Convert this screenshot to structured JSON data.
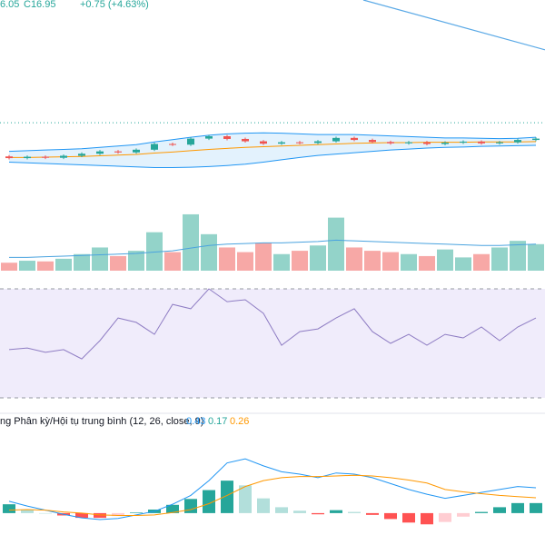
{
  "header": {
    "open_partial": "6.05",
    "close_text": "C16.95",
    "change_text": "+0.75 (+4.63%)"
  },
  "chart_data": [
    {
      "type": "candlestick",
      "ylim": [
        15.2,
        20.6
      ],
      "up_color": "#26a69a",
      "down_color": "#ef5350",
      "open": [
        15.95,
        15.9,
        15.94,
        15.91,
        15.97,
        16.03,
        16.1,
        16.07,
        16.15,
        16.32,
        16.3,
        16.48,
        16.55,
        16.47,
        16.4,
        16.33,
        16.37,
        16.35,
        16.4,
        16.5,
        16.44,
        16.38,
        16.34,
        16.37,
        16.32,
        16.36,
        16.39,
        16.34,
        16.37,
        16.44
      ],
      "close": [
        15.9,
        15.94,
        15.91,
        15.97,
        16.03,
        16.1,
        16.07,
        16.15,
        16.32,
        16.3,
        16.48,
        16.55,
        16.47,
        16.4,
        16.33,
        16.37,
        16.35,
        16.4,
        16.5,
        16.44,
        16.38,
        16.34,
        16.37,
        16.32,
        16.36,
        16.39,
        16.34,
        16.37,
        16.44,
        16.48
      ],
      "high": [
        15.99,
        15.98,
        15.98,
        16.01,
        16.07,
        16.14,
        16.14,
        16.19,
        16.36,
        16.36,
        16.52,
        16.59,
        16.59,
        16.51,
        16.44,
        16.41,
        16.41,
        16.44,
        16.54,
        16.54,
        16.48,
        16.42,
        16.41,
        16.41,
        16.4,
        16.43,
        16.43,
        16.41,
        16.48,
        16.52
      ],
      "low": [
        15.86,
        15.86,
        15.87,
        15.87,
        15.93,
        15.99,
        16.03,
        16.03,
        16.11,
        16.26,
        16.26,
        16.44,
        16.43,
        16.36,
        16.29,
        16.29,
        16.31,
        16.31,
        16.36,
        16.4,
        16.34,
        16.3,
        16.3,
        16.28,
        16.28,
        16.32,
        16.3,
        16.3,
        16.33,
        16.4
      ],
      "bands": [
        {
          "color": "#2196f3",
          "values": [
            16.1,
            16.12,
            16.14,
            16.16,
            16.18,
            16.22,
            16.26,
            16.3,
            16.38,
            16.45,
            16.52,
            16.58,
            16.62,
            16.64,
            16.65,
            16.64,
            16.62,
            16.6,
            16.6,
            16.6,
            16.58,
            16.56,
            16.54,
            16.52,
            16.5,
            16.5,
            16.49,
            16.48,
            16.49,
            16.52
          ]
        },
        {
          "color": "#ff9800",
          "values": [
            15.92,
            15.92,
            15.93,
            15.94,
            15.95,
            15.97,
            15.99,
            16.01,
            16.05,
            16.08,
            16.12,
            16.16,
            16.19,
            16.22,
            16.24,
            16.26,
            16.28,
            16.3,
            16.32,
            16.34,
            16.35,
            16.36,
            16.36,
            16.37,
            16.37,
            16.37,
            16.38,
            16.38,
            16.38,
            16.39
          ]
        },
        {
          "color": "#2196f3",
          "values": [
            15.78,
            15.76,
            15.74,
            15.72,
            15.7,
            15.68,
            15.66,
            15.64,
            15.62,
            15.62,
            15.63,
            15.65,
            15.68,
            15.72,
            15.78,
            15.85,
            15.92,
            15.98,
            16.02,
            16.06,
            16.1,
            16.14,
            16.17,
            16.2,
            16.22,
            16.23,
            16.25,
            16.26,
            16.27,
            16.28
          ]
        }
      ],
      "band_fill": "#e3f2fd",
      "price_line": 16.95,
      "price_line_color": "#26a69a",
      "trend_line": {
        "x": [
          19.5,
          29.5
        ],
        "values": [
          20.6,
          19.12
        ],
        "color": "#5aa9e6"
      }
    },
    {
      "type": "bar",
      "ylim": [
        0,
        100
      ],
      "up_color": "#93d3c9",
      "down_color": "#f7a8a6",
      "values": [
        12,
        15,
        14,
        18,
        25,
        35,
        22,
        30,
        58,
        28,
        85,
        55,
        35,
        28,
        42,
        25,
        30,
        38,
        80,
        35,
        30,
        28,
        25,
        22,
        32,
        20,
        25,
        35,
        45,
        40
      ],
      "ma": {
        "color": "#4aa3df",
        "values": [
          20,
          20,
          21,
          22,
          23,
          24,
          25,
          26,
          28,
          30,
          34,
          38,
          40,
          41,
          42,
          42,
          43,
          44,
          46,
          45,
          44,
          43,
          42,
          41,
          40,
          39,
          38,
          38,
          39,
          40
        ]
      }
    },
    {
      "type": "line",
      "ylim": [
        25,
        75
      ],
      "bands": [
        30,
        70
      ],
      "color": "#8e7cc3",
      "band_fill": "#f0ecfb",
      "values": [
        47.7,
        48.3,
        46.7,
        47.7,
        44.3,
        51,
        59.3,
        57.7,
        53.3,
        64.3,
        62.7,
        70,
        65.3,
        66,
        61,
        49.3,
        54.3,
        55.3,
        59.3,
        62.7,
        54.3,
        50,
        53.3,
        49.3,
        53.3,
        52,
        56,
        51,
        56,
        59.3
      ]
    },
    {
      "type": "macd",
      "ylim": [
        -0.54,
        1.46
      ],
      "label": "ng Phân kỳ/Hội tụ trung bình (12, 26, close, 9)",
      "hist_colors": [
        "#26a69a",
        "#b2dfdb",
        "#ffcdd2",
        "#ff5252"
      ],
      "series": [
        {
          "name": "Histogram",
          "color": "#26a69a",
          "values": [
            0.15,
            0.06,
            0.0,
            -0.04,
            -0.08,
            -0.08,
            -0.05,
            0.01,
            0.06,
            0.14,
            0.24,
            0.39,
            0.55,
            0.47,
            0.25,
            0.1,
            0.04,
            -0.02,
            0.05,
            0.02,
            -0.03,
            -0.1,
            -0.16,
            -0.19,
            -0.15,
            -0.06,
            0.02,
            0.1,
            0.17,
            0.17
          ]
        },
        {
          "name": "MACD",
          "color": "#2196f3",
          "values": [
            0.2,
            0.12,
            0.05,
            -0.02,
            -0.08,
            -0.11,
            -0.09,
            -0.03,
            0.03,
            0.15,
            0.3,
            0.55,
            0.85,
            0.92,
            0.8,
            0.7,
            0.66,
            0.6,
            0.68,
            0.66,
            0.6,
            0.5,
            0.4,
            0.32,
            0.25,
            0.3,
            0.35,
            0.4,
            0.45,
            0.43
          ]
        },
        {
          "name": "Signal",
          "color": "#ff9800",
          "values": [
            0.05,
            0.06,
            0.05,
            0.02,
            0.0,
            -0.03,
            -0.04,
            -0.04,
            -0.03,
            0.01,
            0.06,
            0.16,
            0.3,
            0.45,
            0.55,
            0.6,
            0.62,
            0.62,
            0.63,
            0.64,
            0.63,
            0.6,
            0.56,
            0.51,
            0.4,
            0.36,
            0.33,
            0.3,
            0.28,
            0.26
          ]
        }
      ]
    }
  ]
}
